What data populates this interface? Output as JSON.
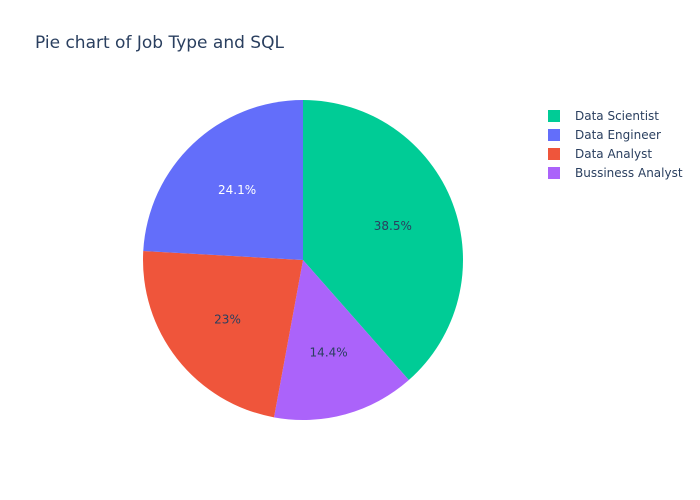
{
  "chart_data": {
    "type": "pie",
    "title": "Pie chart of Job Type and SQL",
    "labels": [
      "Data Scientist",
      "Data Engineer",
      "Data Analyst",
      "Bussiness Analyst"
    ],
    "values": [
      38.5,
      24.1,
      23.0,
      14.4
    ],
    "percent_labels": [
      "38.5%",
      "24.1%",
      "23%",
      "14.4%"
    ],
    "colors": [
      "#00cc96",
      "#636efa",
      "#ef553b",
      "#ab63fa"
    ],
    "label_colors": [
      "#2a3f5f",
      "#ffffff",
      "#2a3f5f",
      "#2a3f5f"
    ],
    "legend_placement": "top-right",
    "rotation_start": "12 o'clock",
    "direction": "clockwise",
    "slice_order_clockwise": [
      "Data Scientist",
      "Bussiness Analyst",
      "Data Analyst",
      "Data Engineer"
    ]
  }
}
